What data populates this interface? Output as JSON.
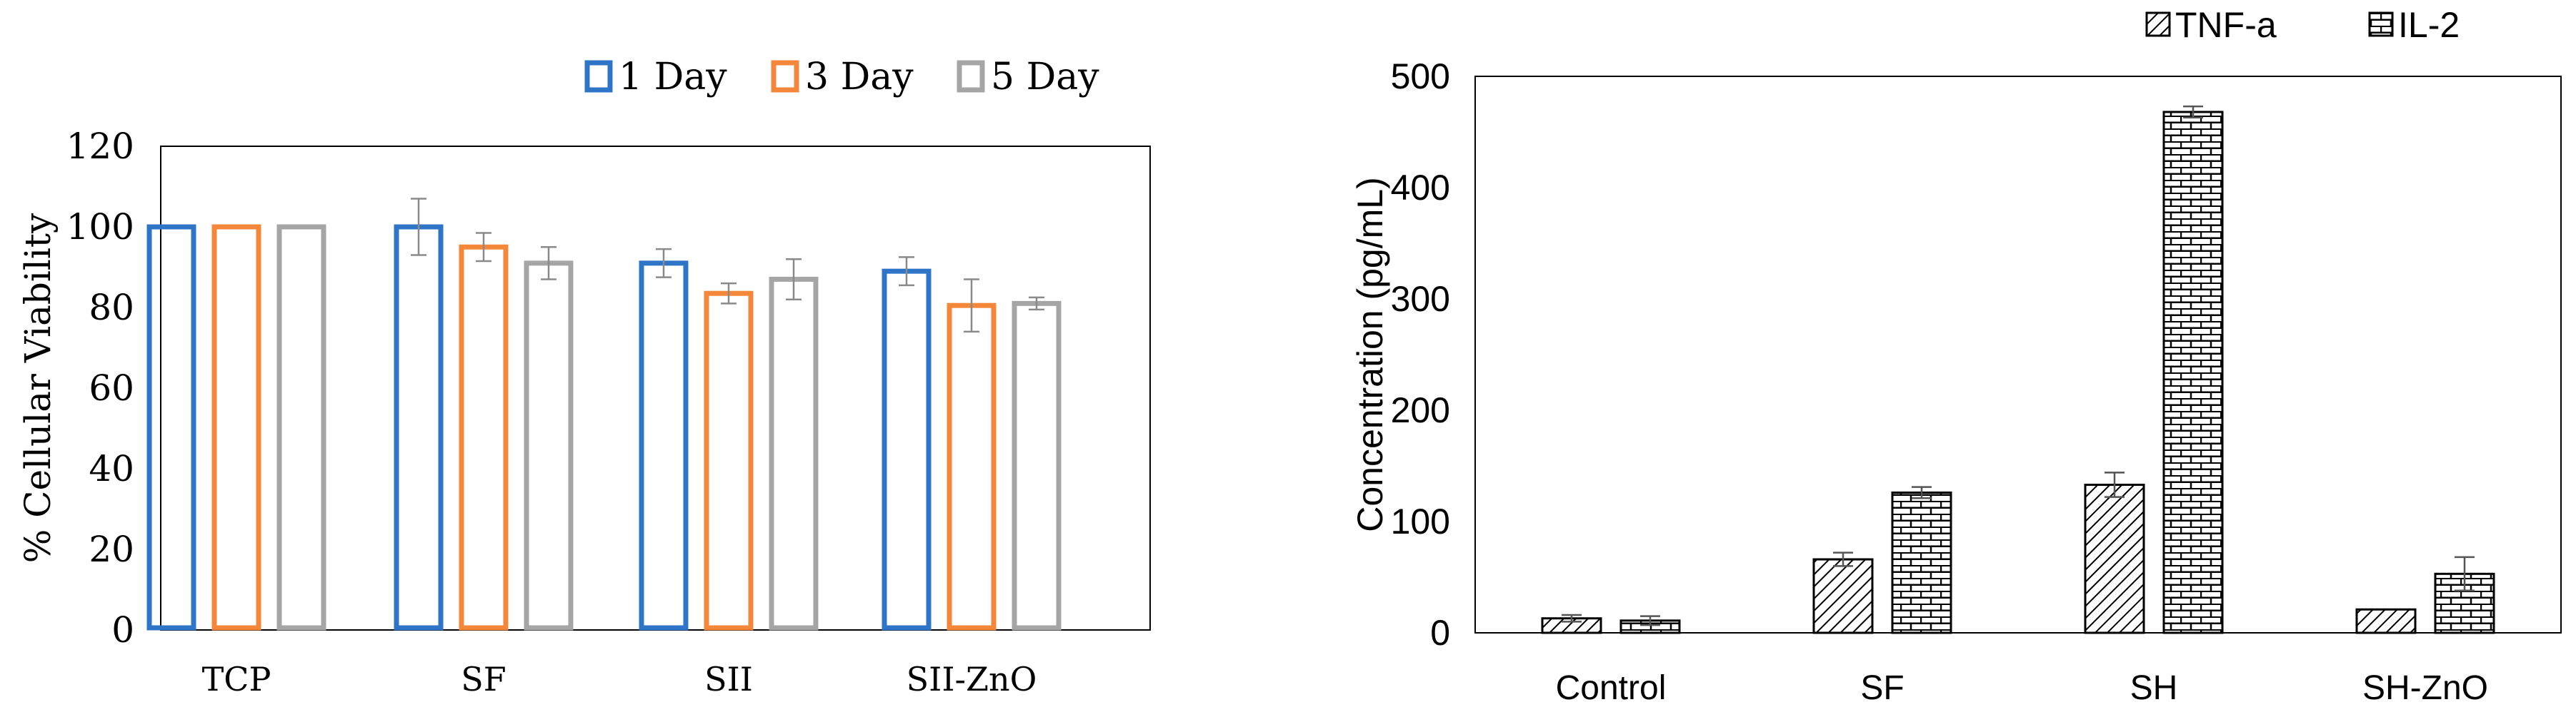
{
  "chart_data": [
    {
      "type": "bar",
      "ylabel": "% Cellular Viability",
      "xlabel": "",
      "ylim": [
        0,
        120
      ],
      "yticks": [
        0,
        20,
        40,
        60,
        80,
        100,
        120
      ],
      "grid": false,
      "legend_position": "top-right",
      "categories": [
        "TCP",
        "SF",
        "SII",
        "SII-ZnO"
      ],
      "series": [
        {
          "name": "1 Day",
          "color": "#2e75c8",
          "values": [
            100,
            100,
            91,
            89
          ],
          "errors": [
            0,
            7,
            3.5,
            3.5
          ]
        },
        {
          "name": "3 Day",
          "color": "#f5873a",
          "values": [
            100,
            95,
            83.5,
            80.5
          ],
          "errors": [
            0,
            3.5,
            2.5,
            6.5
          ]
        },
        {
          "name": "5 Day",
          "color": "#a5a5a5",
          "values": [
            100,
            91,
            87,
            81
          ],
          "errors": [
            0,
            4,
            5,
            1.5
          ]
        }
      ]
    },
    {
      "type": "bar",
      "ylabel": "Concentration (pg/mL)",
      "xlabel": "",
      "ylim": [
        0,
        500
      ],
      "yticks": [
        0,
        100,
        200,
        300,
        400,
        500
      ],
      "grid": false,
      "legend_position": "top-right",
      "categories": [
        "Control",
        "SF",
        "SH",
        "SH-ZnO"
      ],
      "series": [
        {
          "name": "TNF-a",
          "pattern": "diagonal-hatch",
          "values": [
            13,
            66,
            133,
            21
          ],
          "errors": [
            3,
            6,
            11,
            0
          ]
        },
        {
          "name": "IL-2",
          "pattern": "brick",
          "values": [
            11,
            126,
            468,
            53
          ],
          "errors": [
            4,
            5,
            5,
            15
          ]
        }
      ]
    }
  ]
}
